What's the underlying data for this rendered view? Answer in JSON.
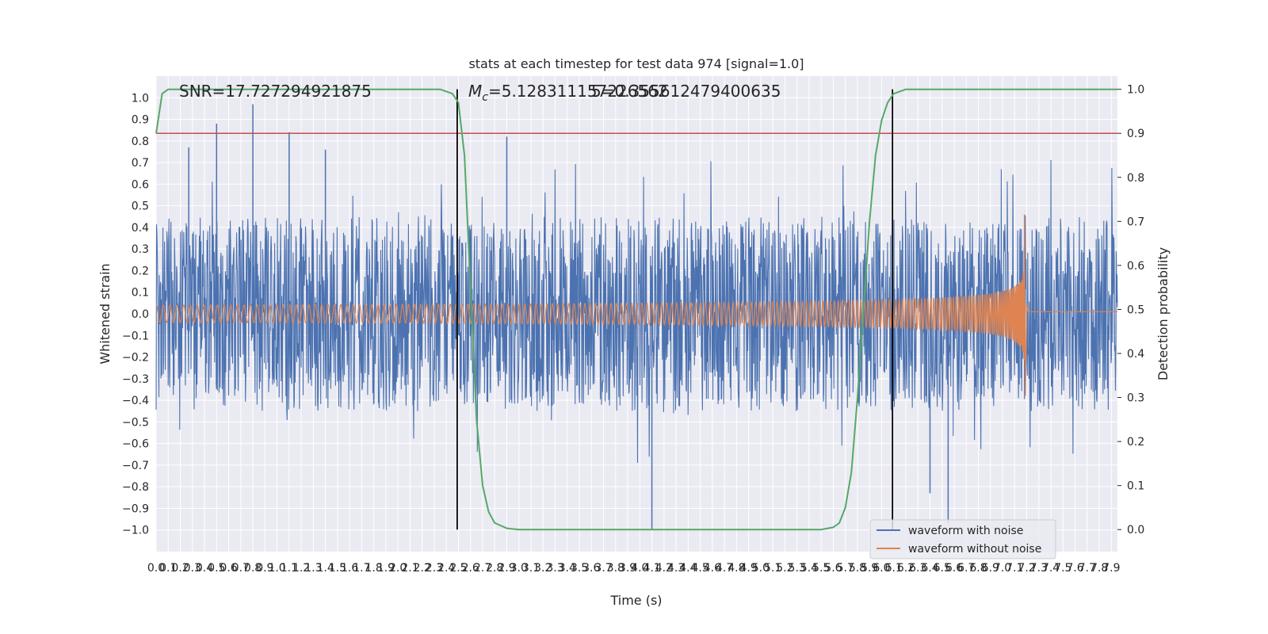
{
  "chart_data": {
    "type": "line",
    "title": "stats at each timestep for test data 974 [signal=1.0]",
    "xlabel": "Time (s)",
    "ylabel": "Whitened strain",
    "y2label": "Detection probability",
    "xlim": [
      0.0,
      7.95
    ],
    "ylim": [
      -1.1,
      1.1
    ],
    "y2lim": [
      -0.05,
      1.03
    ],
    "x_ticks": [
      "0.0",
      "0.1",
      "0.2",
      "0.3",
      "0.4",
      "0.5",
      "0.6",
      "0.7",
      "0.8",
      "0.9",
      "1.0",
      "1.1",
      "1.2",
      "1.3",
      "1.4",
      "1.5",
      "1.6",
      "1.7",
      "1.8",
      "1.9",
      "2.0",
      "2.1",
      "2.2",
      "2.3",
      "2.4",
      "2.5",
      "2.6",
      "2.7",
      "2.8",
      "2.9",
      "3.0",
      "3.1",
      "3.2",
      "3.3",
      "3.4",
      "3.5",
      "3.6",
      "3.7",
      "3.8",
      "3.9",
      "4.0",
      "4.1",
      "4.2",
      "4.3",
      "4.4",
      "4.5",
      "4.6",
      "4.7",
      "4.8",
      "4.9",
      "5.0",
      "5.1",
      "5.2",
      "5.3",
      "5.4",
      "5.5",
      "5.6",
      "5.7",
      "5.8",
      "5.9",
      "6.0",
      "6.1",
      "6.2",
      "6.3",
      "6.4",
      "6.5",
      "6.6",
      "6.7",
      "6.8",
      "6.9",
      "7.0",
      "7.1",
      "7.2",
      "7.3",
      "7.4",
      "7.5",
      "7.6",
      "7.7",
      "7.8",
      "7.9"
    ],
    "y_ticks": [
      "1.0",
      "0.9",
      "0.8",
      "0.7",
      "0.6",
      "0.5",
      "0.4",
      "0.3",
      "0.2",
      "0.1",
      "0.0",
      "−0.1",
      "−0.2",
      "−0.3",
      "−0.4",
      "−0.5",
      "−0.6",
      "−0.7",
      "−0.8",
      "−0.9",
      "−1.0"
    ],
    "y2_ticks": [
      "1.0",
      "0.9",
      "0.8",
      "0.7",
      "0.6",
      "0.5",
      "0.4",
      "0.3",
      "0.2",
      "0.1",
      "0.0"
    ],
    "annotations": {
      "snr": "SNR=17.727294921875",
      "mc_symbol": "M",
      "mc_sub": "c",
      "mc_value": "=5.128311157226562",
      "second_value": "5=0.355612479400635"
    },
    "threshold": {
      "value": 0.9,
      "color": "#c44e52"
    },
    "vlines": [
      2.49,
      6.09
    ],
    "noise_waveform": {
      "name": "waveform with noise",
      "color": "#4c72b0",
      "amplitude_typical": 0.45,
      "amplitude_peak": 0.97,
      "spikes": [
        [
          0.27,
          0.77
        ],
        [
          0.5,
          0.88
        ],
        [
          0.8,
          0.97
        ],
        [
          1.1,
          0.84
        ],
        [
          1.4,
          0.76
        ],
        [
          2.9,
          0.82
        ],
        [
          4.1,
          -1.0
        ],
        [
          6.4,
          -0.83
        ],
        [
          6.55,
          -0.97
        ]
      ]
    },
    "clean_waveform": {
      "name": "waveform without noise",
      "color": "#dd8452",
      "start_amplitude": 0.04,
      "merger_time": 7.18,
      "merger_peak": [
        0.46,
        -0.38
      ],
      "ringdown_end": 7.22
    },
    "probability": {
      "color": "#55a868",
      "points": [
        [
          0.0,
          0.9
        ],
        [
          0.05,
          0.99
        ],
        [
          0.1,
          1.0
        ],
        [
          2.35,
          1.0
        ],
        [
          2.45,
          0.99
        ],
        [
          2.5,
          0.97
        ],
        [
          2.55,
          0.85
        ],
        [
          2.6,
          0.55
        ],
        [
          2.65,
          0.25
        ],
        [
          2.7,
          0.1
        ],
        [
          2.75,
          0.04
        ],
        [
          2.8,
          0.015
        ],
        [
          2.9,
          0.003
        ],
        [
          3.0,
          0.0
        ],
        [
          5.5,
          0.0
        ],
        [
          5.6,
          0.005
        ],
        [
          5.65,
          0.015
        ],
        [
          5.7,
          0.05
        ],
        [
          5.75,
          0.13
        ],
        [
          5.8,
          0.3
        ],
        [
          5.85,
          0.5
        ],
        [
          5.9,
          0.7
        ],
        [
          5.95,
          0.85
        ],
        [
          6.0,
          0.93
        ],
        [
          6.05,
          0.97
        ],
        [
          6.1,
          0.99
        ],
        [
          6.2,
          1.0
        ],
        [
          7.95,
          1.0
        ]
      ]
    },
    "legend": {
      "location": "lower-right",
      "entries": [
        {
          "name": "waveform with noise",
          "color": "#4c72b0"
        },
        {
          "name": "waveform without noise",
          "color": "#dd8452"
        }
      ]
    },
    "grid": true,
    "style": {
      "background": "#eaeaf2",
      "grid_color": "#ffffff"
    }
  }
}
